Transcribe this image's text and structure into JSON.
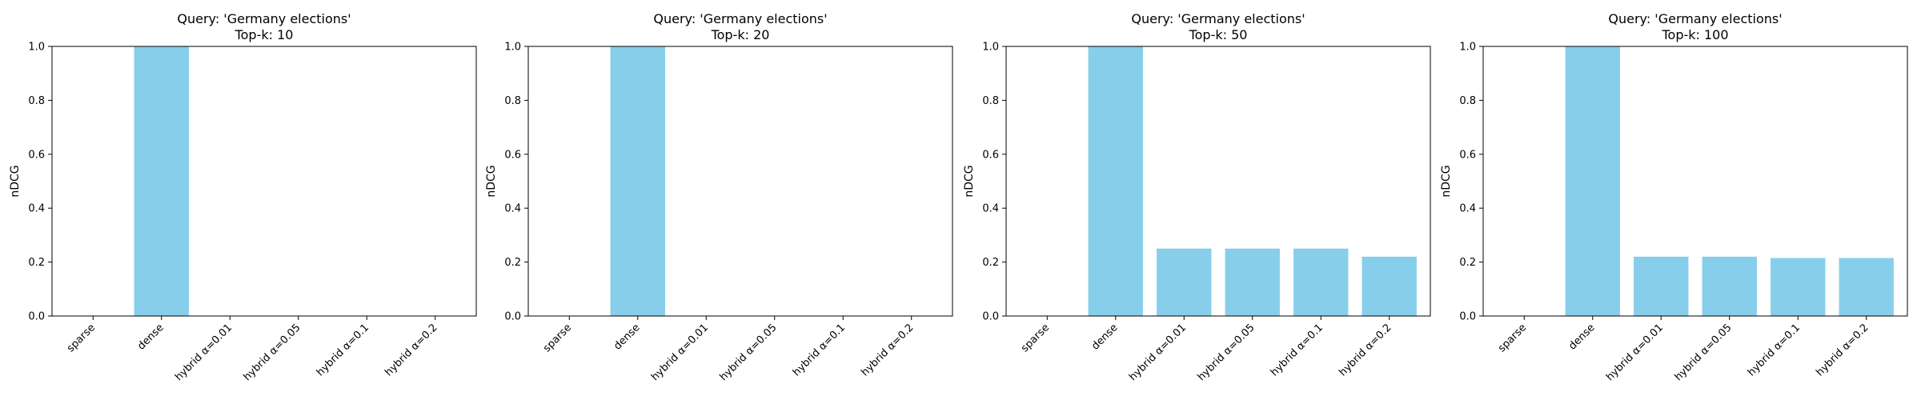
{
  "chart_data": [
    {
      "type": "bar",
      "title": "Query: 'Germany elections'",
      "subtitle": "Top-k: 10",
      "xlabel": "",
      "ylabel": "nDCG",
      "ylim": [
        0,
        1
      ],
      "yticks": [
        "0.0",
        "0.2",
        "0.4",
        "0.6",
        "0.8",
        "1.0"
      ],
      "categories": [
        "sparse",
        "dense",
        "hybrid α=0.01",
        "hybrid α=0.05",
        "hybrid α=0.1",
        "hybrid α=0.2"
      ],
      "values": [
        0,
        1.0,
        0,
        0,
        0,
        0
      ],
      "bar_color": "#87CEEB",
      "grid": false
    },
    {
      "type": "bar",
      "title": "Query: 'Germany elections'",
      "subtitle": "Top-k: 20",
      "xlabel": "",
      "ylabel": "nDCG",
      "ylim": [
        0,
        1
      ],
      "yticks": [
        "0.0",
        "0.2",
        "0.4",
        "0.6",
        "0.8",
        "1.0"
      ],
      "categories": [
        "sparse",
        "dense",
        "hybrid α=0.01",
        "hybrid α=0.05",
        "hybrid α=0.1",
        "hybrid α=0.2"
      ],
      "values": [
        0,
        1.0,
        0,
        0,
        0,
        0
      ],
      "bar_color": "#87CEEB",
      "grid": false
    },
    {
      "type": "bar",
      "title": "Query: 'Germany elections'",
      "subtitle": "Top-k: 50",
      "xlabel": "",
      "ylabel": "nDCG",
      "ylim": [
        0,
        1
      ],
      "yticks": [
        "0.0",
        "0.2",
        "0.4",
        "0.6",
        "0.8",
        "1.0"
      ],
      "categories": [
        "sparse",
        "dense",
        "hybrid α=0.01",
        "hybrid α=0.05",
        "hybrid α=0.1",
        "hybrid α=0.2"
      ],
      "values": [
        0,
        1.0,
        0.25,
        0.25,
        0.25,
        0.22
      ],
      "bar_color": "#87CEEB",
      "grid": false
    },
    {
      "type": "bar",
      "title": "Query: 'Germany elections'",
      "subtitle": "Top-k: 100",
      "xlabel": "",
      "ylabel": "nDCG",
      "ylim": [
        0,
        1
      ],
      "yticks": [
        "0.0",
        "0.2",
        "0.4",
        "0.6",
        "0.8",
        "1.0"
      ],
      "categories": [
        "sparse",
        "dense",
        "hybrid α=0.01",
        "hybrid α=0.05",
        "hybrid α=0.1",
        "hybrid α=0.2"
      ],
      "values": [
        0,
        1.0,
        0.22,
        0.22,
        0.215,
        0.215
      ],
      "bar_color": "#87CEEB",
      "grid": false
    }
  ]
}
